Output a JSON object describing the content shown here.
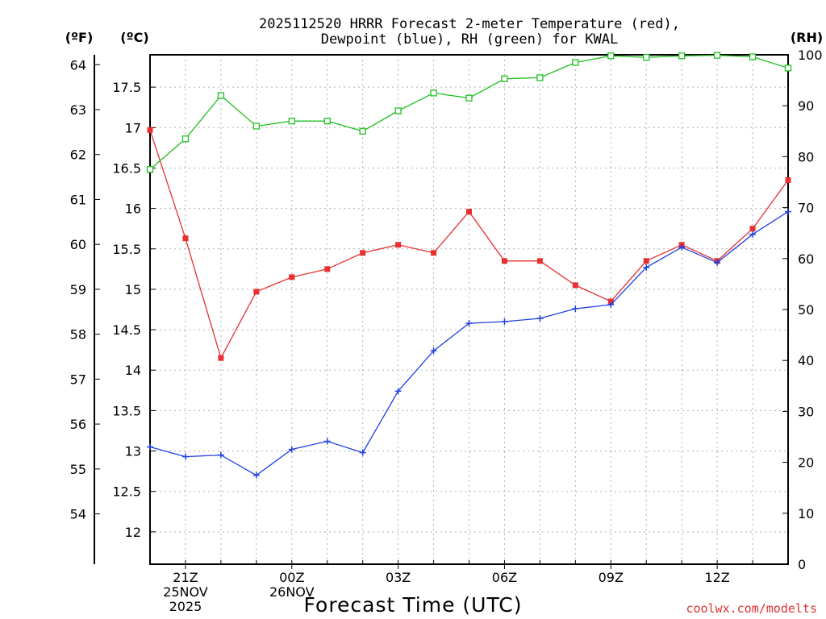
{
  "chart_data": {
    "type": "line",
    "title_lines": [
      "2025112520 HRRR Forecast 2-meter Temperature (red),",
      "Dewpoint (blue), RH (green) for KWAL"
    ],
    "unit_labels": {
      "fahrenheit": "(ºF)",
      "celsius": "(ºC)",
      "rh": "(RH)"
    },
    "xlabel": "Forecast Time (UTC)",
    "credit": "coolwx.com/modelts",
    "x_hours": [
      20,
      21,
      22,
      23,
      24,
      25,
      26,
      27,
      28,
      29,
      30,
      31,
      32,
      33,
      34,
      35,
      36,
      37,
      38
    ],
    "xlim": [
      20,
      38
    ],
    "x_ticks": [
      {
        "hour": 21,
        "lines": [
          "21Z",
          "25NOV",
          "2025"
        ]
      },
      {
        "hour": 24,
        "lines": [
          "00Z",
          "26NOV"
        ]
      },
      {
        "hour": 27,
        "lines": [
          "03Z"
        ]
      },
      {
        "hour": 30,
        "lines": [
          "06Z"
        ]
      },
      {
        "hour": 33,
        "lines": [
          "09Z"
        ]
      },
      {
        "hour": 36,
        "lines": [
          "12Z"
        ]
      }
    ],
    "celsius_axis": {
      "range": [
        11.6,
        17.9
      ],
      "ticks": [
        "12",
        "12.5",
        "13",
        "13.5",
        "14",
        "14.5",
        "15",
        "15.5",
        "16",
        "16.5",
        "17",
        "17.5"
      ]
    },
    "fahrenheit_axis": {
      "range": [
        52.88,
        64.22
      ],
      "ticks": [
        "54",
        "55",
        "56",
        "57",
        "58",
        "59",
        "60",
        "61",
        "62",
        "63",
        "64"
      ]
    },
    "rh_axis": {
      "range": [
        0,
        100
      ],
      "ticks": [
        "0",
        "10",
        "20",
        "30",
        "40",
        "50",
        "60",
        "70",
        "80",
        "90",
        "100"
      ]
    },
    "grid": true,
    "series": [
      {
        "name": "Temperature",
        "axis": "celsius",
        "color": "#e83030",
        "marker": "square-filled",
        "values": [
          16.97,
          15.63,
          14.15,
          14.97,
          15.15,
          15.25,
          15.45,
          15.55,
          15.45,
          15.96,
          15.35,
          15.35,
          15.05,
          14.85,
          15.35,
          15.55,
          15.35,
          15.75,
          16.35
        ]
      },
      {
        "name": "Dewpoint",
        "axis": "celsius",
        "color": "#2040e0",
        "marker": "plus",
        "values": [
          13.05,
          12.93,
          12.95,
          12.7,
          13.02,
          13.12,
          12.98,
          13.74,
          14.24,
          14.58,
          14.6,
          14.64,
          14.76,
          14.81,
          15.27,
          15.52,
          15.33,
          15.68,
          15.96
        ]
      },
      {
        "name": "RH",
        "axis": "rh",
        "color": "#20c020",
        "marker": "square-open",
        "values": [
          77.5,
          83.5,
          92,
          86,
          87,
          87,
          85,
          89,
          92.5,
          91.5,
          95.3,
          95.5,
          98.5,
          99.8,
          99.5,
          99.8,
          99.9,
          99.6,
          97.4
        ]
      }
    ]
  }
}
